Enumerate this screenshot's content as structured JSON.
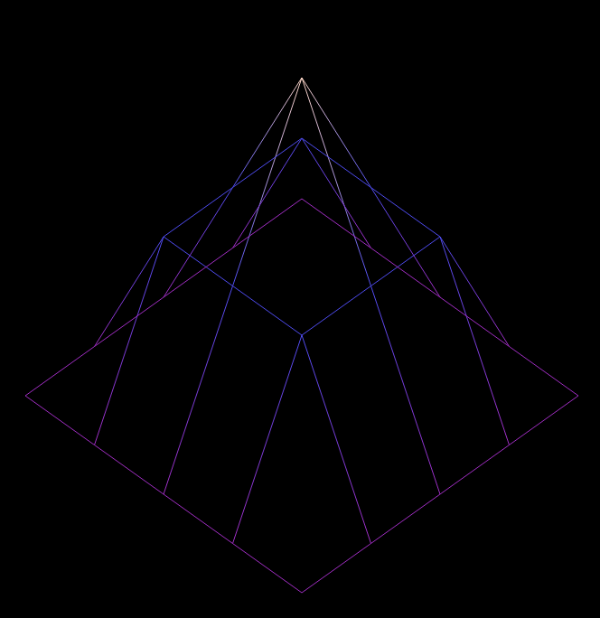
{
  "chart_data": {
    "type": "surface",
    "z": [
      [
        0,
        0,
        0,
        0,
        0
      ],
      [
        0,
        1,
        1,
        1,
        0
      ],
      [
        0,
        1,
        2,
        1,
        0
      ],
      [
        0,
        1,
        1,
        1,
        0
      ],
      [
        0,
        0,
        0,
        0,
        0
      ]
    ],
    "zlim": [
      0,
      2
    ],
    "tick_labels": false
  }
}
